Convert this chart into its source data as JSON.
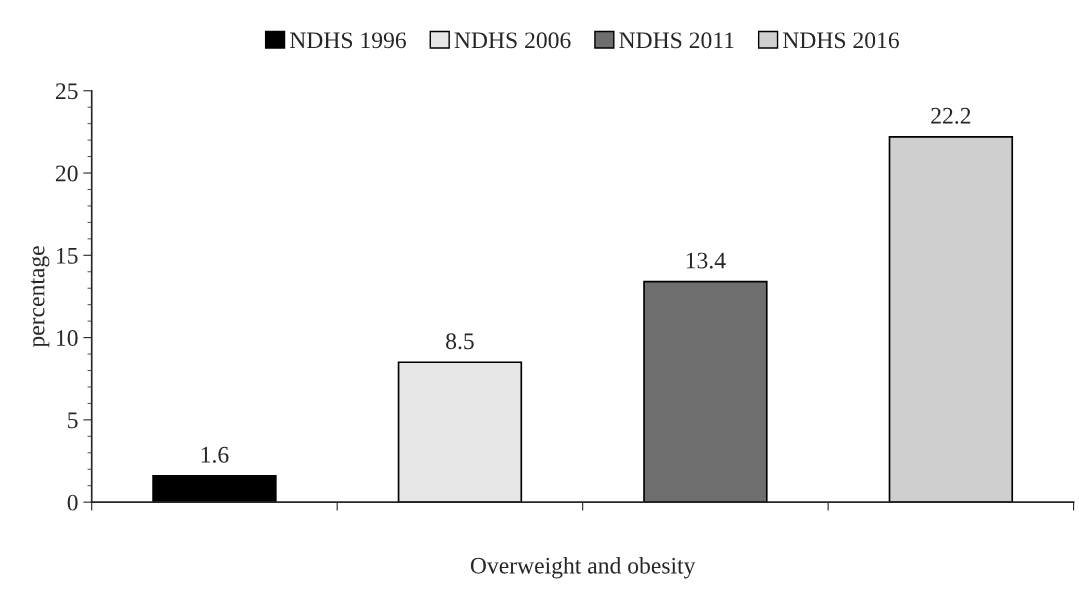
{
  "chart_data": {
    "type": "bar",
    "stacked": true,
    "xlabel": "Overweight and obesity",
    "ylabel": "percentage",
    "categories": [
      null,
      null,
      null,
      null
    ],
    "series": [
      {
        "name": "NDHS 1996",
        "color": "#000000",
        "values": [
          1.6,
          null,
          null,
          null
        ]
      },
      {
        "name": "NDHS 2006",
        "color": "#e6e6e6",
        "values": [
          null,
          8.5,
          null,
          null
        ]
      },
      {
        "name": "NDHS 2011",
        "color": "#6e6e6e",
        "values": [
          null,
          null,
          13.4,
          null
        ]
      },
      {
        "name": "NDHS 2016",
        "color": "#cfcfcf",
        "values": [
          null,
          null,
          null,
          22.2
        ]
      }
    ],
    "ylim": [
      0,
      25
    ],
    "yticks": [
      0,
      5,
      10,
      15,
      20,
      25
    ],
    "grid": false,
    "legend": "top",
    "data_labels": true
  }
}
